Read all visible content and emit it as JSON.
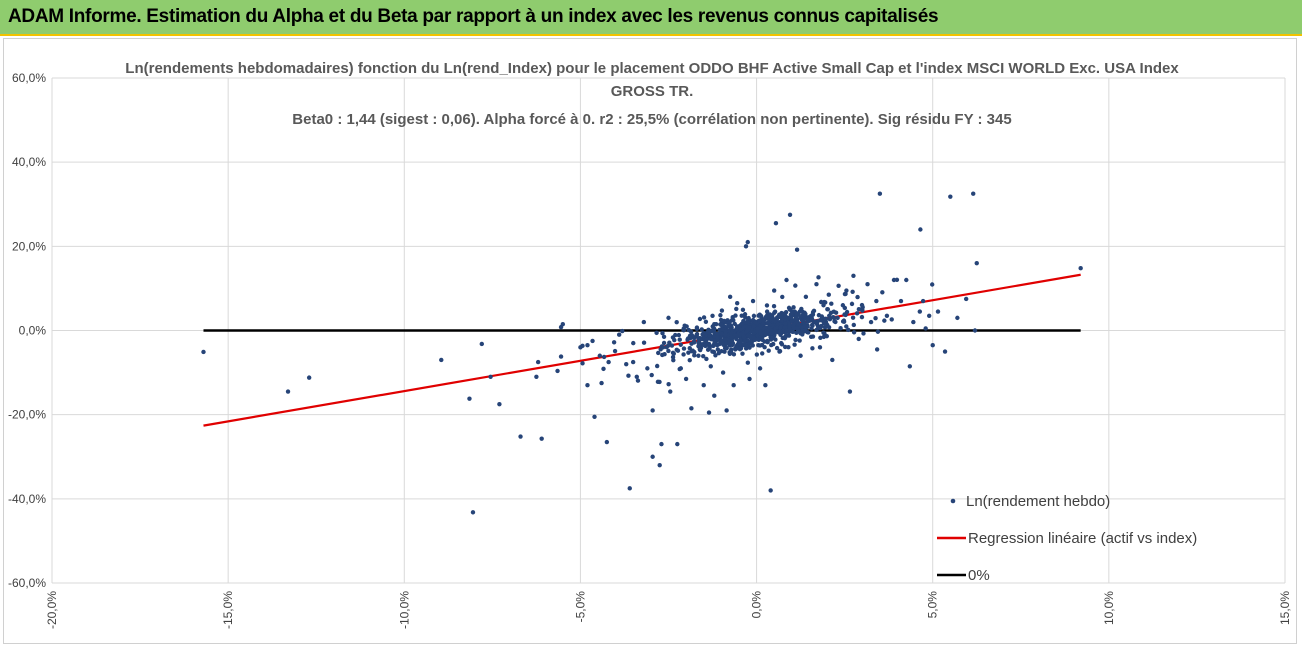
{
  "header": {
    "title": "ADAM Informe. Estimation du Alpha et du Beta par rapport à un index avec les revenus connus capitalisés"
  },
  "chart_data": {
    "type": "scatter",
    "title_lines": [
      "Ln(rendements hebdomadaires) fonction du Ln(rend_Index) pour le placement ODDO BHF Active Small Cap et l'index MSCI WORLD Exc. USA Index",
      "GROSS TR.",
      "Beta0 : 1,44  (sigest : 0,06).  Alpha forcé à 0. r2 : 25,5% (corrélation non pertinente). Sig résidu FY : 345"
    ],
    "xlim": [
      -0.2,
      0.15
    ],
    "ylim": [
      -0.6,
      0.6
    ],
    "x_ticks": [
      -0.2,
      -0.15,
      -0.1,
      -0.05,
      0.0,
      0.05,
      0.1,
      0.15
    ],
    "x_tick_labels": [
      "-20,0%",
      "-15,0%",
      "-10,0%",
      "-5,0%",
      "0,0%",
      "5,0%",
      "10,0%",
      "15,0%"
    ],
    "y_ticks": [
      0.6,
      0.4,
      0.2,
      0.0,
      -0.2,
      -0.4,
      -0.6
    ],
    "y_tick_labels": [
      "60,0%",
      "40,0%",
      "20,0%",
      "0,0%",
      "-20,0%",
      "-40,0%",
      "-60,0%"
    ],
    "grid": true,
    "legend_position": "bottom-right",
    "series": [
      {
        "name": "Ln(rendement hebdo)",
        "kind": "points",
        "color": "#264478",
        "points": [
          [
            -0.157,
            -0.051
          ],
          [
            -0.133,
            -0.145
          ],
          [
            -0.127,
            -0.112
          ],
          [
            -0.0895,
            -0.07
          ],
          [
            -0.0815,
            -0.162
          ],
          [
            -0.0805,
            -0.432
          ],
          [
            -0.078,
            -0.032
          ],
          [
            -0.0755,
            -0.11
          ],
          [
            -0.073,
            -0.175
          ],
          [
            -0.067,
            -0.252
          ],
          [
            -0.062,
            -0.075
          ],
          [
            -0.0625,
            -0.11
          ],
          [
            -0.061,
            -0.257
          ],
          [
            -0.0565,
            -0.096
          ],
          [
            -0.0555,
            -0.062
          ],
          [
            -0.0555,
            0.008
          ],
          [
            -0.055,
            0.015
          ],
          [
            -0.05,
            -0.04
          ],
          [
            -0.048,
            -0.035
          ],
          [
            -0.048,
            -0.13
          ],
          [
            -0.046,
            -0.205
          ],
          [
            -0.0445,
            -0.06
          ],
          [
            -0.044,
            -0.125
          ],
          [
            -0.042,
            -0.075
          ],
          [
            -0.0425,
            -0.265
          ],
          [
            -0.039,
            -0.01
          ],
          [
            -0.037,
            -0.08
          ],
          [
            -0.036,
            -0.375
          ],
          [
            -0.035,
            -0.03
          ],
          [
            -0.034,
            -0.11
          ],
          [
            -0.032,
            0.02
          ],
          [
            -0.031,
            -0.09
          ],
          [
            -0.0295,
            -0.19
          ],
          [
            -0.0295,
            -0.3
          ],
          [
            -0.028,
            -0.122
          ],
          [
            -0.0275,
            -0.32
          ],
          [
            -0.027,
            -0.27
          ],
          [
            -0.0265,
            -0.04
          ],
          [
            -0.025,
            0.03
          ],
          [
            -0.0245,
            -0.145
          ],
          [
            -0.0235,
            -0.055
          ],
          [
            -0.0225,
            -0.27
          ],
          [
            -0.0215,
            -0.09
          ],
          [
            -0.02,
            -0.115
          ],
          [
            -0.0185,
            -0.185
          ],
          [
            -0.0165,
            -0.06
          ],
          [
            -0.015,
            -0.13
          ],
          [
            -0.0135,
            -0.195
          ],
          [
            -0.013,
            -0.085
          ],
          [
            -0.0125,
            0.035
          ],
          [
            -0.012,
            -0.155
          ],
          [
            -0.011,
            -0.045
          ],
          [
            -0.0095,
            -0.1
          ],
          [
            -0.0085,
            -0.19
          ],
          [
            -0.0075,
            0.08
          ],
          [
            -0.0065,
            -0.13
          ],
          [
            -0.0055,
            0.065
          ],
          [
            -0.004,
            -0.055
          ],
          [
            -0.003,
            0.2
          ],
          [
            -0.0025,
            0.21
          ],
          [
            -0.002,
            -0.115
          ],
          [
            -0.001,
            0.07
          ],
          [
            0.0005,
            -0.035
          ],
          [
            0.001,
            -0.09
          ],
          [
            0.0025,
            -0.13
          ],
          [
            0.003,
            0.045
          ],
          [
            0.004,
            -0.38
          ],
          [
            0.005,
            0.095
          ],
          [
            0.0055,
            0.255
          ],
          [
            0.0065,
            -0.05
          ],
          [
            0.0075,
            0.04
          ],
          [
            0.0085,
            0.12
          ],
          [
            0.0095,
            0.275
          ],
          [
            0.0105,
            0.055
          ],
          [
            0.0115,
            0.192
          ],
          [
            0.0125,
            -0.06
          ],
          [
            0.014,
            0.08
          ],
          [
            0.0155,
            -0.015
          ],
          [
            0.017,
            0.11
          ],
          [
            0.018,
            -0.04
          ],
          [
            0.019,
            0.06
          ],
          [
            0.0205,
            0.085
          ],
          [
            0.0215,
            -0.07
          ],
          [
            0.023,
            0.03
          ],
          [
            0.0245,
            0.06
          ],
          [
            0.0255,
            0.095
          ],
          [
            0.0265,
            -0.145
          ],
          [
            0.0275,
            0.13
          ],
          [
            0.029,
            -0.02
          ],
          [
            0.03,
            0.05
          ],
          [
            0.0315,
            0.11
          ],
          [
            0.0325,
            0.02
          ],
          [
            0.034,
            0.07
          ],
          [
            0.035,
            0.325
          ],
          [
            0.037,
            0.035
          ],
          [
            0.039,
            0.12
          ],
          [
            0.041,
            0.07
          ],
          [
            0.0425,
            0.12
          ],
          [
            0.0435,
            -0.085
          ],
          [
            0.0445,
            0.02
          ],
          [
            0.0465,
            0.24
          ],
          [
            0.048,
            0.005
          ],
          [
            0.049,
            0.035
          ],
          [
            0.05,
            -0.035
          ],
          [
            0.0515,
            0.045
          ],
          [
            0.0535,
            -0.05
          ],
          [
            0.055,
            0.318
          ],
          [
            0.057,
            0.03
          ],
          [
            0.0595,
            0.075
          ],
          [
            0.0615,
            0.325
          ],
          [
            0.0625,
            0.16
          ],
          [
            0.092,
            0.148
          ],
          [
            0.062,
            -0.0
          ]
        ]
      },
      {
        "name": "Regression linéaire (actif vs index)",
        "kind": "line",
        "color": "#e00000",
        "x": [
          -0.157,
          0.092
        ],
        "y": [
          -0.226,
          0.1325
        ]
      },
      {
        "name": "0%",
        "kind": "line",
        "color": "#000000",
        "x": [
          -0.157,
          0.092
        ],
        "y": [
          0.0,
          0.0
        ]
      }
    ]
  }
}
